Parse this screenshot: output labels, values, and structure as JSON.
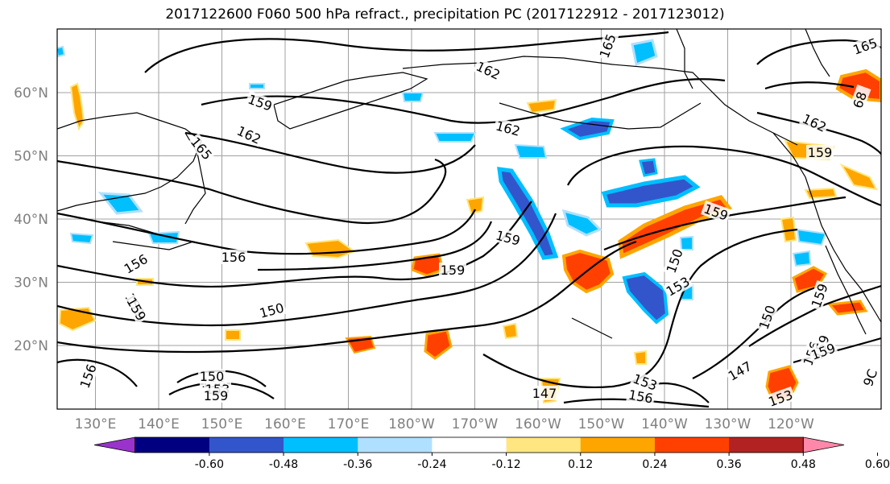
{
  "title": "2017122600 F060 500 hPa refract., precipitation PC (2017122912 - 2017123012)",
  "lat_labels": [
    {
      "text": "60°N",
      "lat": 60
    },
    {
      "text": "50°N",
      "lat": 50
    },
    {
      "text": "40°N",
      "lat": 40
    },
    {
      "text": "30°N",
      "lat": 30
    },
    {
      "text": "20°N",
      "lat": 20
    }
  ],
  "lon_labels": [
    {
      "text": "130°E",
      "lon": 130
    },
    {
      "text": "140°E",
      "lon": 140
    },
    {
      "text": "150°E",
      "lon": 150
    },
    {
      "text": "160°E",
      "lon": 160
    },
    {
      "text": "170°E",
      "lon": 170
    },
    {
      "text": "180°W",
      "lon": 180
    },
    {
      "text": "170°W",
      "lon": 190
    },
    {
      "text": "160°W",
      "lon": 200
    },
    {
      "text": "150°W",
      "lon": 210
    },
    {
      "text": "140°W",
      "lon": 220
    },
    {
      "text": "130°W",
      "lon": 230
    },
    {
      "text": "120°W",
      "lon": 240
    }
  ],
  "contour_labels": [
    {
      "text": "165"
    },
    {
      "text": "162"
    },
    {
      "text": "159"
    },
    {
      "text": "165"
    },
    {
      "text": "162"
    },
    {
      "text": "162"
    },
    {
      "text": "165"
    },
    {
      "text": "162"
    },
    {
      "text": "159"
    },
    {
      "text": "159"
    },
    {
      "text": "156"
    },
    {
      "text": "156"
    },
    {
      "text": "159"
    },
    {
      "text": "159"
    },
    {
      "text": "150"
    },
    {
      "text": "153"
    },
    {
      "text": "159"
    },
    {
      "text": "159"
    },
    {
      "text": "150"
    },
    {
      "text": "156"
    },
    {
      "text": "159"
    },
    {
      "text": "147"
    },
    {
      "text": "153"
    },
    {
      "text": "156"
    },
    {
      "text": "150"
    },
    {
      "text": "153"
    },
    {
      "text": "156"
    },
    {
      "text": "147"
    },
    {
      "text": "153"
    },
    {
      "text": "159"
    },
    {
      "text": "156"
    },
    {
      "text": "150"
    },
    {
      "text": "159"
    },
    {
      "text": "68"
    },
    {
      "text": "159"
    },
    {
      "text": "9C"
    }
  ],
  "colorbar": {
    "colors": [
      "#9933cc",
      "#000080",
      "#3355cc",
      "#00bfff",
      "#b0e0ff",
      "#ffffff",
      "#ffe680",
      "#ffa500",
      "#ff4000",
      "#b22222",
      "#ff88aa"
    ],
    "tick_labels": [
      "-0.60",
      "-0.48",
      "-0.36",
      "-0.24",
      "-0.12",
      "0.12",
      "0.24",
      "0.36",
      "0.48",
      "0.60"
    ]
  }
}
